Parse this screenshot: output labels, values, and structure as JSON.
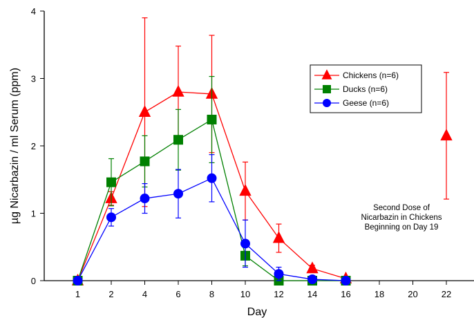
{
  "chart_data": {
    "type": "line",
    "xlabel": "Day",
    "ylabel": "µg Nicarbazin / ml Serum (ppm)",
    "ylim": [
      0,
      4
    ],
    "yticks": [
      0,
      1,
      2,
      3,
      4
    ],
    "categories": [
      "1",
      "2",
      "4",
      "6",
      "8",
      "10",
      "12",
      "14",
      "16",
      "18",
      "20",
      "22"
    ],
    "grid": false,
    "legend_position": "top-right",
    "error_bars": true,
    "series": [
      {
        "name": "Chickens (n=6)",
        "color": "#ff0000",
        "marker": "triangle",
        "values": [
          0,
          1.22,
          2.5,
          2.8,
          2.77,
          1.33,
          0.63,
          0.18,
          0.03,
          null,
          null,
          2.15
        ],
        "errors": [
          0,
          0.1,
          1.4,
          0.68,
          0.87,
          0.43,
          0.21,
          0.05,
          0.02,
          null,
          null,
          0.94
        ],
        "connected_points": 9
      },
      {
        "name": "Ducks (n=6)",
        "color": "#008000",
        "marker": "square",
        "values": [
          0,
          1.46,
          1.77,
          2.09,
          2.39,
          0.37,
          0,
          0,
          0,
          null,
          null,
          null
        ],
        "errors": [
          0,
          0.35,
          0.38,
          0.45,
          0.64,
          0.15,
          0,
          0,
          0,
          null,
          null,
          null
        ],
        "connected_points": 9
      },
      {
        "name": "Geese (n=6)",
        "color": "#0000ff",
        "marker": "circle",
        "values": [
          0,
          0.94,
          1.22,
          1.29,
          1.52,
          0.55,
          0.1,
          0.02,
          0,
          null,
          null,
          null
        ],
        "errors": [
          0,
          0.13,
          0.22,
          0.36,
          0.35,
          0.35,
          0.1,
          0.02,
          0,
          null,
          null,
          null
        ],
        "connected_points": 9
      }
    ],
    "annotation": [
      "Second Dose of",
      "Nicarbazin in Chickens",
      "Beginning on Day 19"
    ]
  }
}
